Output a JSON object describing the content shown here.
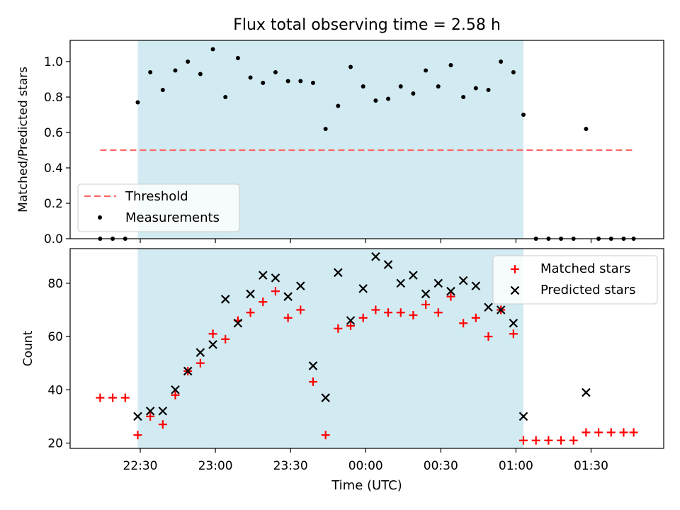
{
  "figure": {
    "title": "Flux total observing time = 2.58 h",
    "xlabel": "Time (UTC)"
  },
  "colors": {
    "shade": "#add8e6",
    "threshold": "#ff6666",
    "measurement": "#000000",
    "matched": "#ff0000",
    "predicted": "#000000"
  },
  "chart_data": [
    {
      "type": "scatter",
      "panel": "top",
      "ylabel": "Matched/Predicted stars",
      "ylim": [
        0,
        1.12
      ],
      "yticks": [
        0.0,
        0.2,
        0.4,
        0.6,
        0.8,
        1.0
      ],
      "ytick_labels": [
        "0.0",
        "0.2",
        "0.4",
        "0.6",
        "0.8",
        "1.0"
      ],
      "xticks": [
        "22:30",
        "23:00",
        "23:30",
        "00:00",
        "00:30",
        "01:00",
        "01:30"
      ],
      "xlim": [
        "22:02",
        "01:59"
      ],
      "shaded_span": [
        "22:29",
        "01:03"
      ],
      "threshold": {
        "label": "Threshold",
        "value": 0.5,
        "x_range": [
          "22:14",
          "01:47"
        ],
        "style": "dashed"
      },
      "legend": {
        "position": "lower-left",
        "entries": [
          "Threshold",
          "Measurements"
        ]
      },
      "series": [
        {
          "name": "Measurements",
          "marker": "dot",
          "points": [
            [
              "22:14",
              0.0
            ],
            [
              "22:19",
              0.0
            ],
            [
              "22:24",
              0.0
            ],
            [
              "22:29",
              0.77
            ],
            [
              "22:34",
              0.94
            ],
            [
              "22:39",
              0.84
            ],
            [
              "22:44",
              0.95
            ],
            [
              "22:49",
              1.0
            ],
            [
              "22:54",
              0.93
            ],
            [
              "22:59",
              1.07
            ],
            [
              "23:04",
              0.8
            ],
            [
              "23:09",
              1.02
            ],
            [
              "23:14",
              0.91
            ],
            [
              "23:19",
              0.88
            ],
            [
              "23:24",
              0.94
            ],
            [
              "23:29",
              0.89
            ],
            [
              "23:34",
              0.89
            ],
            [
              "23:39",
              0.88
            ],
            [
              "23:44",
              0.62
            ],
            [
              "23:49",
              0.75
            ],
            [
              "23:54",
              0.97
            ],
            [
              "23:59",
              0.86
            ],
            [
              "00:04",
              0.78
            ],
            [
              "00:09",
              0.79
            ],
            [
              "00:14",
              0.86
            ],
            [
              "00:19",
              0.82
            ],
            [
              "00:24",
              0.95
            ],
            [
              "00:29",
              0.86
            ],
            [
              "00:34",
              0.98
            ],
            [
              "00:39",
              0.8
            ],
            [
              "00:44",
              0.85
            ],
            [
              "00:49",
              0.84
            ],
            [
              "00:54",
              1.0
            ],
            [
              "00:59",
              0.94
            ],
            [
              "01:03",
              0.7
            ],
            [
              "01:08",
              0.0
            ],
            [
              "01:13",
              0.0
            ],
            [
              "01:18",
              0.0
            ],
            [
              "01:23",
              0.0
            ],
            [
              "01:28",
              0.62
            ],
            [
              "01:33",
              0.0
            ],
            [
              "01:38",
              0.0
            ],
            [
              "01:43",
              0.0
            ],
            [
              "01:47",
              0.0
            ]
          ]
        }
      ]
    },
    {
      "type": "scatter",
      "panel": "bottom",
      "ylabel": "Count",
      "ylim": [
        18,
        93
      ],
      "yticks": [
        20,
        40,
        60,
        80
      ],
      "ytick_labels": [
        "20",
        "40",
        "60",
        "80"
      ],
      "xticks": [
        "22:30",
        "23:00",
        "23:30",
        "00:00",
        "00:30",
        "01:00",
        "01:30"
      ],
      "xlim": [
        "22:02",
        "01:59"
      ],
      "shaded_span": [
        "22:29",
        "01:03"
      ],
      "legend": {
        "position": "top-right",
        "entries": [
          "Matched stars",
          "Predicted stars"
        ]
      },
      "series": [
        {
          "name": "Matched stars",
          "marker": "plus",
          "points": [
            [
              "22:14",
              37
            ],
            [
              "22:19",
              37
            ],
            [
              "22:24",
              37
            ],
            [
              "22:29",
              23
            ],
            [
              "22:34",
              30
            ],
            [
              "22:39",
              27
            ],
            [
              "22:44",
              38
            ],
            [
              "22:49",
              47
            ],
            [
              "22:54",
              50
            ],
            [
              "22:59",
              61
            ],
            [
              "23:04",
              59
            ],
            [
              "23:09",
              66
            ],
            [
              "23:14",
              69
            ],
            [
              "23:19",
              73
            ],
            [
              "23:24",
              77
            ],
            [
              "23:29",
              67
            ],
            [
              "23:34",
              70
            ],
            [
              "23:39",
              43
            ],
            [
              "23:44",
              23
            ],
            [
              "23:49",
              63
            ],
            [
              "23:54",
              64
            ],
            [
              "23:59",
              67
            ],
            [
              "00:04",
              70
            ],
            [
              "00:09",
              69
            ],
            [
              "00:14",
              69
            ],
            [
              "00:19",
              68
            ],
            [
              "00:24",
              72
            ],
            [
              "00:29",
              69
            ],
            [
              "00:34",
              75
            ],
            [
              "00:39",
              65
            ],
            [
              "00:44",
              67
            ],
            [
              "00:49",
              60
            ],
            [
              "00:54",
              70
            ],
            [
              "00:59",
              61
            ],
            [
              "01:03",
              21
            ],
            [
              "01:08",
              21
            ],
            [
              "01:13",
              21
            ],
            [
              "01:18",
              21
            ],
            [
              "01:23",
              21
            ],
            [
              "01:28",
              24
            ],
            [
              "01:33",
              24
            ],
            [
              "01:38",
              24
            ],
            [
              "01:43",
              24
            ],
            [
              "01:47",
              24
            ]
          ]
        },
        {
          "name": "Predicted stars",
          "marker": "x",
          "points": [
            [
              "22:29",
              30
            ],
            [
              "22:34",
              32
            ],
            [
              "22:39",
              32
            ],
            [
              "22:44",
              40
            ],
            [
              "22:49",
              47
            ],
            [
              "22:54",
              54
            ],
            [
              "22:59",
              57
            ],
            [
              "23:04",
              74
            ],
            [
              "23:09",
              65
            ],
            [
              "23:14",
              76
            ],
            [
              "23:19",
              83
            ],
            [
              "23:24",
              82
            ],
            [
              "23:29",
              75
            ],
            [
              "23:34",
              79
            ],
            [
              "23:39",
              49
            ],
            [
              "23:44",
              37
            ],
            [
              "23:49",
              84
            ],
            [
              "23:54",
              66
            ],
            [
              "23:59",
              78
            ],
            [
              "00:04",
              90
            ],
            [
              "00:09",
              87
            ],
            [
              "00:14",
              80
            ],
            [
              "00:19",
              83
            ],
            [
              "00:24",
              76
            ],
            [
              "00:29",
              80
            ],
            [
              "00:34",
              77
            ],
            [
              "00:39",
              81
            ],
            [
              "00:44",
              79
            ],
            [
              "00:49",
              71
            ],
            [
              "00:54",
              70
            ],
            [
              "00:59",
              65
            ],
            [
              "01:03",
              30
            ],
            [
              "01:28",
              39
            ]
          ]
        }
      ]
    }
  ]
}
